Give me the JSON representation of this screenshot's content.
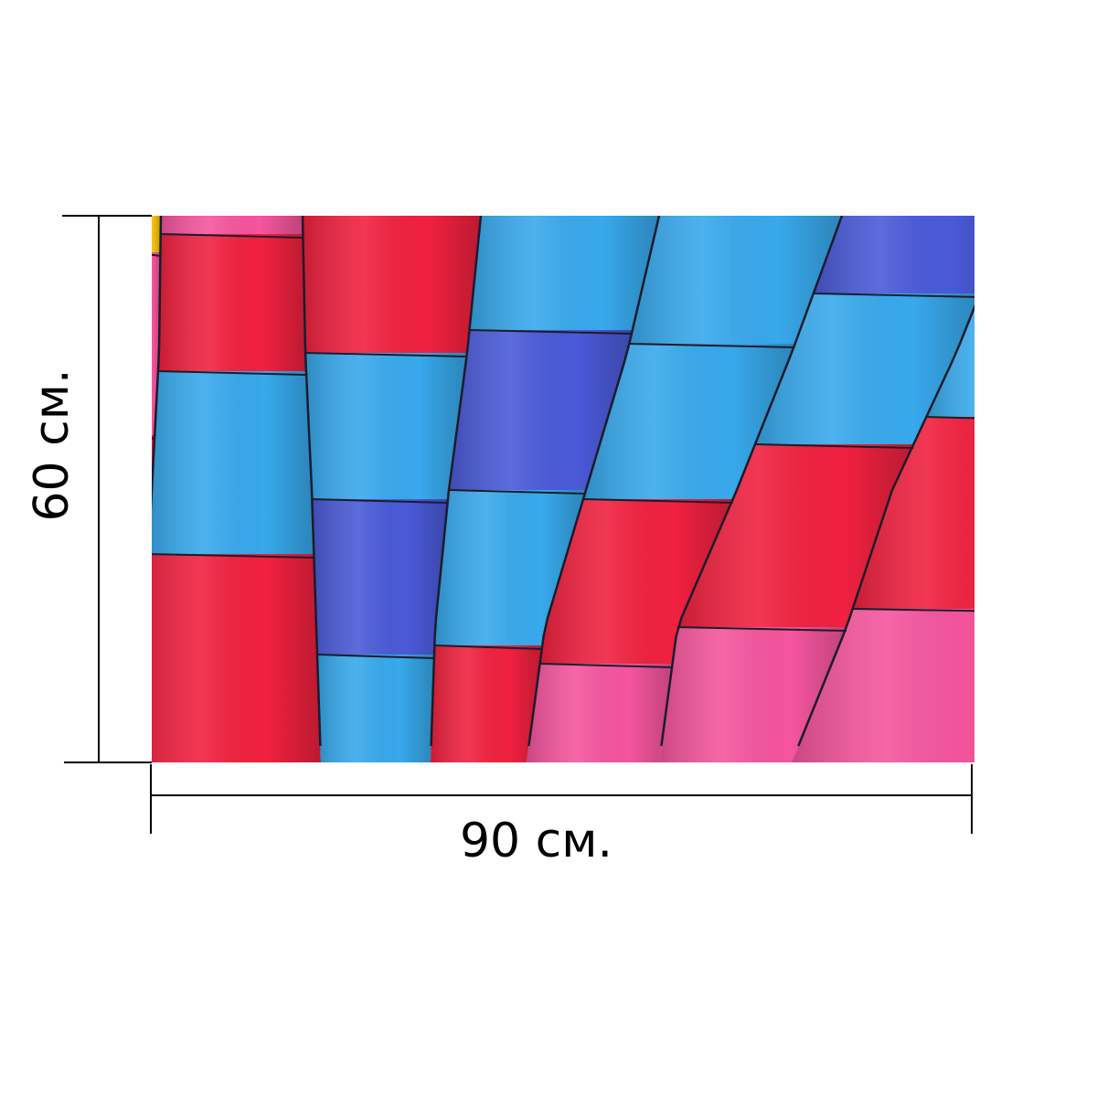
{
  "dimensions": {
    "width_label": "90 см.",
    "height_label": "60 см."
  },
  "photo": {
    "subject": "hot-air-balloon-fabric",
    "colors": {
      "red": "#f0213f",
      "pink": "#f5559e",
      "sky_blue": "#38a9ec",
      "royal_blue": "#4a5ad8",
      "yellow": "#f6c40f",
      "seam": "#1c1c2a"
    }
  }
}
